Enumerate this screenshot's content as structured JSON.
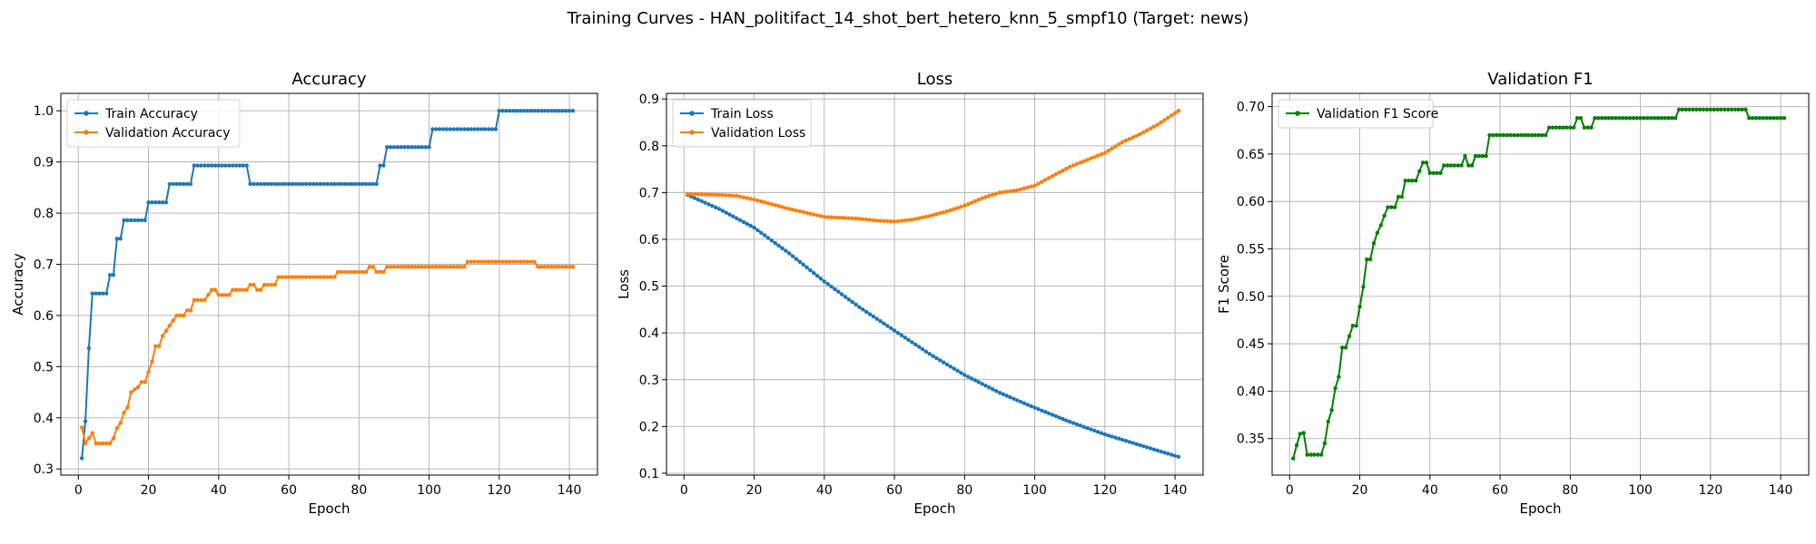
{
  "figure": {
    "title": "Training Curves - HAN_politifact_14_shot_bert_hetero_knn_5_smpf10 (Target: news)"
  },
  "colors": {
    "blue": "#1f77b4",
    "orange": "#ff7f0e",
    "green": "#008000",
    "grid": "#b0b0b0"
  },
  "chart_data": [
    {
      "type": "line",
      "title": "Accuracy",
      "xlabel": "Epoch",
      "ylabel": "Accuracy",
      "xlim": [
        -5,
        148
      ],
      "ylim": [
        0.288,
        1.034
      ],
      "xticks": [
        0,
        20,
        40,
        60,
        80,
        100,
        120,
        140
      ],
      "yticks": [
        0.3,
        0.4,
        0.5,
        0.6,
        0.7,
        0.8,
        0.9,
        1.0
      ],
      "ytick_labels": [
        "0.3",
        "0.4",
        "0.5",
        "0.6",
        "0.7",
        "0.8",
        "0.9",
        "1.0"
      ],
      "grid": true,
      "legend_position": "upper-left",
      "series": [
        {
          "name": "Train Accuracy",
          "color": "#1f77b4",
          "steps": [
            [
              1,
              0.321
            ],
            [
              2,
              0.393
            ],
            [
              3,
              0.536
            ],
            [
              4,
              0.643
            ],
            [
              9,
              0.679
            ],
            [
              11,
              0.75
            ],
            [
              13,
              0.786
            ],
            [
              20,
              0.821
            ],
            [
              26,
              0.857
            ],
            [
              33,
              0.893
            ],
            [
              49,
              0.857
            ],
            [
              86,
              0.893
            ],
            [
              88,
              0.929
            ],
            [
              101,
              0.964
            ],
            [
              120,
              1.0
            ],
            [
              141,
              1.0
            ]
          ]
        },
        {
          "name": "Validation Accuracy",
          "color": "#ff7f0e",
          "points": [
            [
              1,
              0.381
            ],
            [
              2,
              0.35
            ],
            [
              3,
              0.36
            ],
            [
              4,
              0.37
            ],
            [
              5,
              0.35
            ],
            [
              9,
              0.35
            ],
            [
              10,
              0.36
            ],
            [
              11,
              0.38
            ],
            [
              12,
              0.39
            ],
            [
              13,
              0.41
            ],
            [
              14,
              0.42
            ],
            [
              15,
              0.45
            ],
            [
              17,
              0.46
            ],
            [
              18,
              0.47
            ],
            [
              19,
              0.47
            ],
            [
              20,
              0.49
            ],
            [
              21,
              0.51
            ],
            [
              22,
              0.54
            ],
            [
              23,
              0.54
            ],
            [
              24,
              0.56
            ],
            [
              25,
              0.57
            ],
            [
              26,
              0.58
            ],
            [
              27,
              0.59
            ],
            [
              28,
              0.6
            ],
            [
              30,
              0.6
            ],
            [
              31,
              0.61
            ],
            [
              32,
              0.61
            ],
            [
              33,
              0.63
            ],
            [
              36,
              0.63
            ],
            [
              37,
              0.64
            ],
            [
              38,
              0.65
            ],
            [
              39,
              0.65
            ],
            [
              40,
              0.64
            ],
            [
              43,
              0.64
            ],
            [
              44,
              0.65
            ],
            [
              48,
              0.65
            ],
            [
              49,
              0.66
            ],
            [
              50,
              0.66
            ],
            [
              51,
              0.65
            ],
            [
              52,
              0.65
            ],
            [
              53,
              0.66
            ],
            [
              56,
              0.66
            ],
            [
              57,
              0.675
            ],
            [
              73,
              0.675
            ],
            [
              74,
              0.685
            ],
            [
              82,
              0.685
            ],
            [
              83,
              0.695
            ],
            [
              84,
              0.695
            ],
            [
              85,
              0.685
            ],
            [
              87,
              0.685
            ],
            [
              88,
              0.695
            ],
            [
              110,
              0.695
            ],
            [
              111,
              0.705
            ],
            [
              130,
              0.705
            ],
            [
              131,
              0.695
            ],
            [
              141,
              0.695
            ]
          ]
        }
      ]
    },
    {
      "type": "line",
      "title": "Loss",
      "xlabel": "Epoch",
      "ylabel": "Loss",
      "xlim": [
        -5,
        148
      ],
      "ylim": [
        0.096,
        0.912
      ],
      "xticks": [
        0,
        20,
        40,
        60,
        80,
        100,
        120,
        140
      ],
      "yticks": [
        0.1,
        0.2,
        0.3,
        0.4,
        0.5,
        0.6,
        0.7,
        0.8,
        0.9
      ],
      "ytick_labels": [
        "0.1",
        "0.2",
        "0.3",
        "0.4",
        "0.5",
        "0.6",
        "0.7",
        "0.8",
        "0.9"
      ],
      "grid": true,
      "legend_position": "upper-left",
      "series": [
        {
          "name": "Train Loss",
          "color": "#1f77b4",
          "points": [
            [
              1,
              0.695
            ],
            [
              10,
              0.665
            ],
            [
              20,
              0.625
            ],
            [
              30,
              0.57
            ],
            [
              40,
              0.51
            ],
            [
              50,
              0.455
            ],
            [
              60,
              0.405
            ],
            [
              70,
              0.355
            ],
            [
              80,
              0.31
            ],
            [
              90,
              0.272
            ],
            [
              100,
              0.24
            ],
            [
              110,
              0.21
            ],
            [
              120,
              0.183
            ],
            [
              130,
              0.16
            ],
            [
              141,
              0.135
            ]
          ]
        },
        {
          "name": "Validation Loss",
          "color": "#ff7f0e",
          "points": [
            [
              1,
              0.697
            ],
            [
              10,
              0.695
            ],
            [
              15,
              0.693
            ],
            [
              20,
              0.685
            ],
            [
              30,
              0.665
            ],
            [
              40,
              0.648
            ],
            [
              45,
              0.646
            ],
            [
              50,
              0.644
            ],
            [
              55,
              0.64
            ],
            [
              60,
              0.638
            ],
            [
              65,
              0.642
            ],
            [
              70,
              0.65
            ],
            [
              75,
              0.66
            ],
            [
              80,
              0.672
            ],
            [
              85,
              0.688
            ],
            [
              90,
              0.7
            ],
            [
              95,
              0.705
            ],
            [
              100,
              0.715
            ],
            [
              105,
              0.735
            ],
            [
              110,
              0.755
            ],
            [
              115,
              0.77
            ],
            [
              120,
              0.785
            ],
            [
              125,
              0.808
            ],
            [
              130,
              0.825
            ],
            [
              135,
              0.845
            ],
            [
              141,
              0.875
            ]
          ]
        }
      ]
    },
    {
      "type": "line",
      "title": "Validation F1",
      "xlabel": "Epoch",
      "ylabel": "F1 Score",
      "xlim": [
        -5,
        148
      ],
      "ylim": [
        0.3115,
        0.714
      ],
      "xticks": [
        0,
        20,
        40,
        60,
        80,
        100,
        120,
        140
      ],
      "yticks": [
        0.35,
        0.4,
        0.45,
        0.5,
        0.55,
        0.6,
        0.65,
        0.7
      ],
      "ytick_labels": [
        "0.35",
        "0.40",
        "0.45",
        "0.50",
        "0.55",
        "0.60",
        "0.65",
        "0.70"
      ],
      "grid": true,
      "legend_position": "upper-left",
      "series": [
        {
          "name": "Validation F1 Score",
          "color": "#008000",
          "points": [
            [
              1,
              0.329
            ],
            [
              2,
              0.343
            ],
            [
              3,
              0.355
            ],
            [
              4,
              0.356
            ],
            [
              5,
              0.333
            ],
            [
              9,
              0.333
            ],
            [
              10,
              0.345
            ],
            [
              11,
              0.368
            ],
            [
              12,
              0.38
            ],
            [
              13,
              0.403
            ],
            [
              14,
              0.415
            ],
            [
              15,
              0.446
            ],
            [
              16,
              0.446
            ],
            [
              17,
              0.458
            ],
            [
              18,
              0.469
            ],
            [
              19,
              0.469
            ],
            [
              20,
              0.489
            ],
            [
              21,
              0.51
            ],
            [
              22,
              0.539
            ],
            [
              23,
              0.539
            ],
            [
              24,
              0.556
            ],
            [
              25,
              0.567
            ],
            [
              26,
              0.575
            ],
            [
              27,
              0.585
            ],
            [
              28,
              0.594
            ],
            [
              30,
              0.594
            ],
            [
              31,
              0.605
            ],
            [
              32,
              0.605
            ],
            [
              33,
              0.622
            ],
            [
              36,
              0.622
            ],
            [
              37,
              0.632
            ],
            [
              38,
              0.641
            ],
            [
              39,
              0.641
            ],
            [
              40,
              0.63
            ],
            [
              43,
              0.63
            ],
            [
              44,
              0.638
            ],
            [
              49,
              0.638
            ],
            [
              50,
              0.648
            ],
            [
              51,
              0.638
            ],
            [
              52,
              0.638
            ],
            [
              53,
              0.648
            ],
            [
              56,
              0.648
            ],
            [
              57,
              0.67
            ],
            [
              73,
              0.67
            ],
            [
              74,
              0.678
            ],
            [
              81,
              0.678
            ],
            [
              82,
              0.688
            ],
            [
              83,
              0.688
            ],
            [
              84,
              0.678
            ],
            [
              86,
              0.678
            ],
            [
              87,
              0.688
            ],
            [
              110,
              0.688
            ],
            [
              111,
              0.697
            ],
            [
              130,
              0.697
            ],
            [
              131,
              0.688
            ],
            [
              141,
              0.688
            ]
          ]
        }
      ]
    }
  ]
}
